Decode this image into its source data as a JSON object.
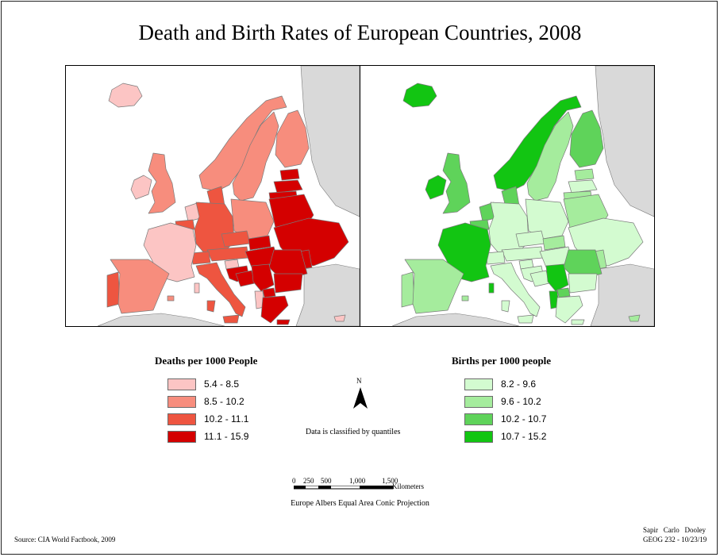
{
  "title": "Death and Birth Rates of European Countries, 2008",
  "colors": {
    "land_other": "#d9d9d9",
    "border": "#7a7a7a",
    "deaths": [
      "#fcc5c4",
      "#f78d7d",
      "#ee5540",
      "#d40000"
    ],
    "births": [
      "#d3fbd0",
      "#a5ec9d",
      "#5fd35a",
      "#12c512"
    ]
  },
  "deaths_legend": {
    "title": "Deaths per 1000 People",
    "classes": [
      "5.4 - 8.5",
      "8.5 - 10.2",
      "10.2 - 11.1",
      "11.1 - 15.9"
    ]
  },
  "births_legend": {
    "title": "Births per 1000 people",
    "classes": [
      "8.2 - 9.6",
      "9.6 - 10.2",
      "10.2 - 10.7",
      "10.7 - 15.2"
    ]
  },
  "north_label": "N",
  "classification_note": "Data is classified by quantiles",
  "scale_bar": {
    "ticks": [
      "0",
      "250",
      "500",
      "1,000",
      "1,500"
    ],
    "unit": "Kilometers"
  },
  "projection": "Europe Albers Equal Area Conic Projection",
  "source": "Source: CIA World Factbook, 2009",
  "authors": "Sapir   Carlo   Dooley",
  "course": "GEOG 232 - 10/23/19",
  "map_data": {
    "deaths_class": {
      "Iceland": 0,
      "Ireland": 0,
      "France": 0,
      "Netherlands": 0,
      "Slovenia": 0,
      "Cyprus": 0,
      "Albania": 0,
      "United Kingdom": 1,
      "Spain": 1,
      "Norway": 1,
      "Sweden": 1,
      "Finland": 1,
      "Poland": 1,
      "Portugal": 2,
      "Germany": 2,
      "Belgium": 2,
      "Denmark": 2,
      "Italy": 2,
      "Austria": 2,
      "Czech Republic": 2,
      "Switzerland": 2,
      "Greece": 3,
      "Estonia": 3,
      "Latvia": 3,
      "Lithuania": 3,
      "Belarus": 3,
      "Ukraine": 3,
      "Hungary": 3,
      "Romania": 3,
      "Bulgaria": 3,
      "Serbia": 3,
      "Croatia": 3,
      "Slovakia": 3,
      "Moldova": 3,
      "Bosnia": 3,
      "Macedonia": 3
    },
    "births_class": {
      "Germany": 0,
      "Italy": 0,
      "Poland": 0,
      "Ukraine": 0,
      "Austria": 0,
      "Czech Republic": 0,
      "Hungary": 0,
      "Croatia": 0,
      "Bosnia": 0,
      "Bulgaria": 0,
      "Greece": 0,
      "Switzerland": 0,
      "Slovenia": 0,
      "Latvia": 0,
      "Portugal": 1,
      "Spain": 1,
      "Sweden": 1,
      "Lithuania": 1,
      "Estonia": 1,
      "Belarus": 1,
      "Slovakia": 1,
      "Moldova": 1,
      "Cyprus": 1,
      "United Kingdom": 2,
      "Netherlands": 2,
      "Belgium": 2,
      "Denmark": 2,
      "Finland": 2,
      "Romania": 2,
      "Macedonia": 2,
      "Iceland": 3,
      "Ireland": 3,
      "France": 3,
      "Norway": 3,
      "Serbia": 3,
      "Albania": 3
    }
  }
}
